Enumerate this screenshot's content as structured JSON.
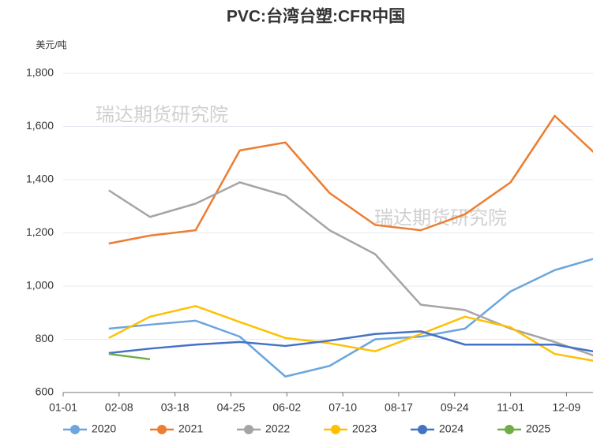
{
  "chart_data": {
    "type": "line",
    "title": "PVC:台湾台塑:CFR中国",
    "y_label": "美元/吨",
    "watermarks": [
      "瑞达期货研究院",
      "瑞达期货研究院"
    ],
    "x": [
      31,
      59,
      90,
      120,
      151,
      181,
      212,
      243,
      273,
      304,
      334,
      365
    ],
    "xlim": [
      0,
      360
    ],
    "xticks": [
      {
        "value": 0,
        "label": "01-01"
      },
      {
        "value": 38,
        "label": "02-08"
      },
      {
        "value": 76,
        "label": "03-18"
      },
      {
        "value": 114,
        "label": "04-25"
      },
      {
        "value": 152,
        "label": "06-02"
      },
      {
        "value": 190,
        "label": "07-10"
      },
      {
        "value": 228,
        "label": "08-17"
      },
      {
        "value": 266,
        "label": "09-24"
      },
      {
        "value": 304,
        "label": "11-01"
      },
      {
        "value": 342,
        "label": "12-09"
      }
    ],
    "ylim": [
      600,
      1800
    ],
    "yticks": [
      {
        "value": 600,
        "label": "600"
      },
      {
        "value": 800,
        "label": "800"
      },
      {
        "value": 1000,
        "label": "1,000"
      },
      {
        "value": 1200,
        "label": "1,200"
      },
      {
        "value": 1400,
        "label": "1,400"
      },
      {
        "value": 1600,
        "label": "1,600"
      },
      {
        "value": 1800,
        "label": "1,800"
      }
    ],
    "grid": true,
    "legend": "bottom",
    "series": [
      {
        "name": "2020",
        "color": "#6ca6dc",
        "values": [
          840,
          855,
          870,
          810,
          660,
          700,
          800,
          810,
          840,
          980,
          1060,
          1110
        ]
      },
      {
        "name": "2021",
        "color": "#ed7d31",
        "values": [
          1160,
          1190,
          1210,
          1510,
          1540,
          1350,
          1230,
          1210,
          1270,
          1390,
          1640,
          1480
        ]
      },
      {
        "name": "2022",
        "color": "#a5a5a5",
        "values": [
          1360,
          1260,
          1310,
          1390,
          1340,
          1210,
          1120,
          930,
          910,
          840,
          790,
          730
        ]
      },
      {
        "name": "2023",
        "color": "#ffc000",
        "values": [
          805,
          885,
          925,
          865,
          805,
          785,
          755,
          820,
          885,
          845,
          745,
          715
        ]
      },
      {
        "name": "2024",
        "color": "#4472c4",
        "values": [
          748,
          765,
          780,
          790,
          775,
          795,
          820,
          830,
          780,
          780,
          780,
          750
        ]
      },
      {
        "name": "2025",
        "color": "#70ad47",
        "values": [
          745,
          725,
          null,
          null,
          null,
          null,
          null,
          null,
          null,
          null,
          null,
          null
        ]
      }
    ]
  }
}
